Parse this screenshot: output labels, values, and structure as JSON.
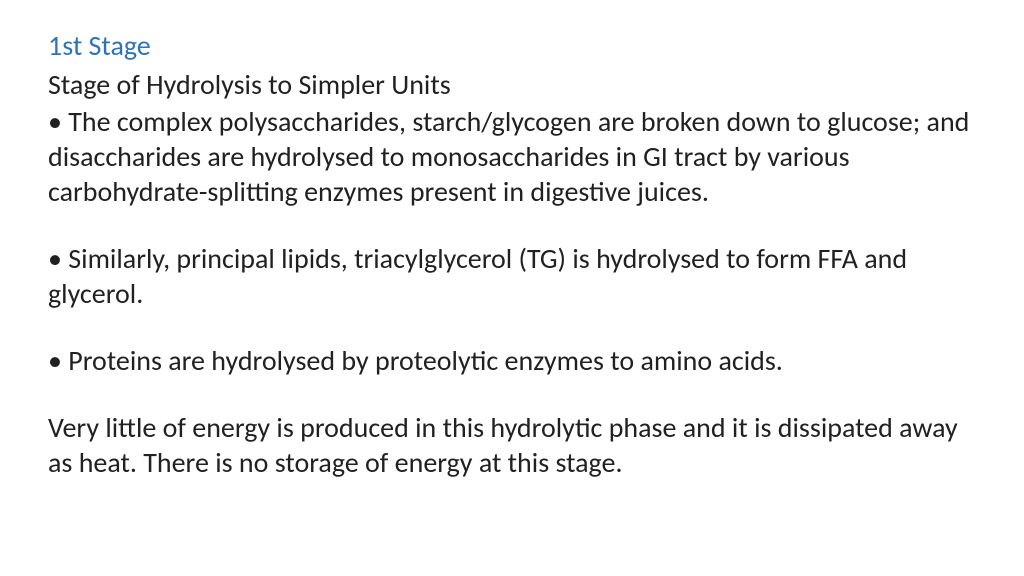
{
  "colors": {
    "heading": "#2e74b5",
    "body": "#212121",
    "background": "#ffffff"
  },
  "typography": {
    "font_family": "Calibri, Segoe UI, Arial, sans-serif",
    "heading_fontsize": 28,
    "body_fontsize": 28,
    "line_height": 1.25
  },
  "heading": "1st Stage",
  "subheading": "Stage of Hydrolysis to Simpler Units",
  "bullets": [
    "• The complex polysaccharides, starch/glycogen are broken down to glucose; and disaccharides are hydrolysed to monosaccharides in GI tract by various carbohydrate-splitting enzymes present in digestive juices.",
    "• Similarly, principal lipids, triacylglycerol (TG) is hydrolysed to form FFA and glycerol.",
    "• Proteins are hydrolysed by proteolytic enzymes to amino acids."
  ],
  "closing": " Very little of energy is produced in this hydrolytic phase and it is dissipated away as heat. There is no storage of energy at this stage."
}
